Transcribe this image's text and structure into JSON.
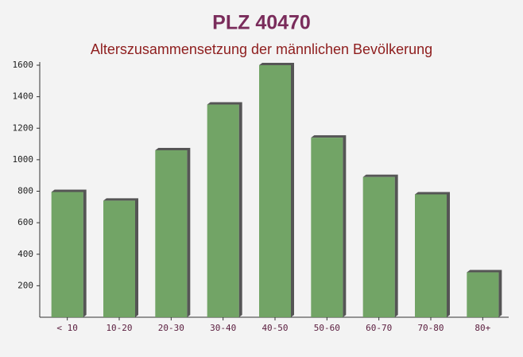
{
  "chart_data": {
    "type": "bar",
    "title": "PLZ 40470",
    "subtitle": "Alterszusammensetzung der männlichen Bevölkerung",
    "categories": [
      "< 10",
      "10-20",
      "20-30",
      "30-40",
      "40-50",
      "50-60",
      "60-70",
      "70-80",
      "80+"
    ],
    "values": [
      795,
      740,
      1060,
      1350,
      1600,
      1140,
      890,
      780,
      285
    ],
    "color": "#6a9f5e",
    "ylim": [
      0,
      1600
    ],
    "yticks": [
      200,
      400,
      600,
      800,
      1000,
      1200,
      1400,
      1600
    ],
    "grid": false
  }
}
